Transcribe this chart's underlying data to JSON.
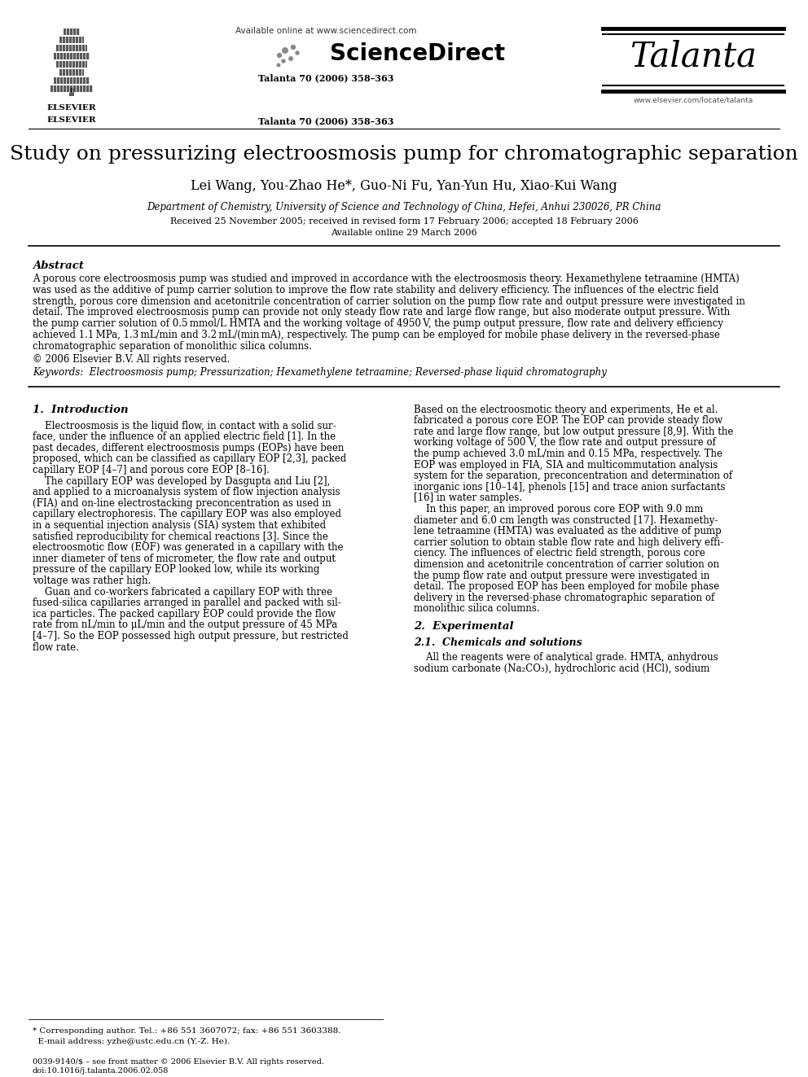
{
  "title": "Study on pressurizing electroosmosis pump for chromatographic separation",
  "authors": "Lei Wang, You-Zhao He*, Guo-Ni Fu, Yan-Yun Hu, Xiao-Kui Wang",
  "affiliation": "Department of Chemistry, University of Science and Technology of China, Hefei, Anhui 230026, PR China",
  "received": "Received 25 November 2005; received in revised form 17 February 2006; accepted 18 February 2006",
  "available": "Available online 29 March 2006",
  "journal_info": "Talanta 70 (2006) 358–363",
  "journal_name": "Talanta",
  "sciencedirect_text": "Available online at www.sciencedirect.com",
  "sciencedirect_logo": "ScienceDirect",
  "elsevier_text": "ELSEVIER",
  "website": "www.elsevier.com/locate/talanta",
  "abstract_title": "Abstract",
  "copyright": "© 2006 Elsevier B.V. All rights reserved.",
  "keywords_label": "Keywords:",
  "keywords_text": "Electroosmosis pump; Pressurization; Hexamethylene tetraamine; Reversed-phase liquid chromatography",
  "section1_title": "1.  Introduction",
  "section2_title": "2.  Experimental",
  "section2_1_title": "2.1.  Chemicals and solutions",
  "footer_left_1": "* Corresponding author. Tel.: +86 551 3607072; fax: +86 551 3603388.",
  "footer_left_2": "  E-mail address: yzhe@ustc.edu.cn (Y.-Z. He).",
  "footer_bottom_1": "0039-9140/$ – see front matter © 2006 Elsevier B.V. All rights reserved.",
  "footer_bottom_2": "doi:10.1016/j.talanta.2006.02.058",
  "bg_color": "#ffffff",
  "text_color": "#000000",
  "abstract_lines": [
    "A porous core electroosmosis pump was studied and improved in accordance with the electroosmosis theory. Hexamethylene tetraamine (HMTA)",
    "was used as the additive of pump carrier solution to improve the flow rate stability and delivery efficiency. The influences of the electric field",
    "strength, porous core dimension and acetonitrile concentration of carrier solution on the pump flow rate and output pressure were investigated in",
    "detail. The improved electroosmosis pump can provide not only steady flow rate and large flow range, but also moderate output pressure. With",
    "the pump carrier solution of 0.5 mmol/L HMTA and the working voltage of 4950 V, the pump output pressure, flow rate and delivery efficiency",
    "achieved 1.1 MPa, 1.3 mL/min and 3.2 mL/(min mA), respectively. The pump can be employed for mobile phase delivery in the reversed-phase",
    "chromatographic separation of monolithic silica columns."
  ],
  "left_col_lines": [
    "    Electroosmosis is the liquid flow, in contact with a solid sur-",
    "face, under the influence of an applied electric field [1]. In the",
    "past decades, different electroosmosis pumps (EOPs) have been",
    "proposed, which can be classified as capillary EOP [2,3], packed",
    "capillary EOP [4–7] and porous core EOP [8–16].",
    "    The capillary EOP was developed by Dasgupta and Liu [2],",
    "and applied to a microanalysis system of flow injection analysis",
    "(FIA) and on-line electrostacking preconcentration as used in",
    "capillary electrophoresis. The capillary EOP was also employed",
    "in a sequential injection analysis (SIA) system that exhibited",
    "satisfied reproducibility for chemical reactions [3]. Since the",
    "electroosmotic flow (EOF) was generated in a capillary with the",
    "inner diameter of tens of micrometer, the flow rate and output",
    "pressure of the capillary EOP looked low, while its working",
    "voltage was rather high.",
    "    Guan and co-workers fabricated a capillary EOP with three",
    "fused-silica capillaries arranged in parallel and packed with sil-",
    "ica particles. The packed capillary EOP could provide the flow",
    "rate from nL/min to μL/min and the output pressure of 45 MPa",
    "[4–7]. So the EOP possessed high output pressure, but restricted",
    "flow rate."
  ],
  "right_col_lines": [
    "Based on the electroosmotic theory and experiments, He et al.",
    "fabricated a porous core EOP. The EOP can provide steady flow",
    "rate and large flow range, but low output pressure [8,9]. With the",
    "working voltage of 500 V, the flow rate and output pressure of",
    "the pump achieved 3.0 mL/min and 0.15 MPa, respectively. The",
    "EOP was employed in FIA, SIA and multicommutation analysis",
    "system for the separation, preconcentration and determination of",
    "inorganic ions [10–14], phenols [15] and trace anion surfactants",
    "[16] in water samples.",
    "    In this paper, an improved porous core EOP with 9.0 mm",
    "diameter and 6.0 cm length was constructed [17]. Hexamethy-",
    "lene tetraamine (HMTA) was evaluated as the additive of pump",
    "carrier solution to obtain stable flow rate and high delivery effi-",
    "ciency. The influences of electric field strength, porous core",
    "dimension and acetonitrile concentration of carrier solution on",
    "the pump flow rate and output pressure were investigated in",
    "detail. The proposed EOP has been employed for mobile phase",
    "delivery in the reversed-phase chromatographic separation of",
    "monolithic silica columns."
  ],
  "sec2_1_lines": [
    "    All the reagents were of analytical grade. HMTA, anhydrous",
    "sodium carbonate (Na₂CO₃), hydrochloric acid (HCl), sodium"
  ]
}
